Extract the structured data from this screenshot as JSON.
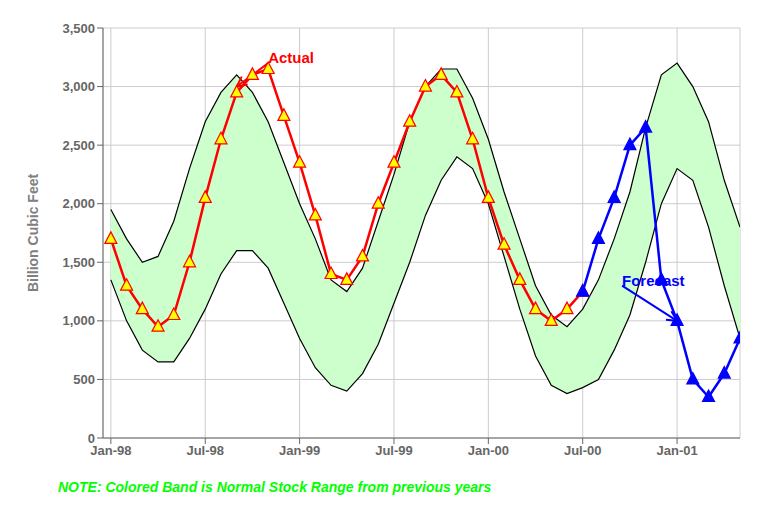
{
  "chart_data": {
    "type": "line",
    "ylabel": "Billion Cubic Feet",
    "grid": true,
    "xlim": [
      -0.5,
      40
    ],
    "xticks": [
      {
        "value": 0,
        "label": "Jan-98"
      },
      {
        "value": 6,
        "label": "Jul-98"
      },
      {
        "value": 12,
        "label": "Jan-99"
      },
      {
        "value": 18,
        "label": "Jul-99"
      },
      {
        "value": 24,
        "label": "Jan-00"
      },
      {
        "value": 30,
        "label": "Jul-00"
      },
      {
        "value": 36,
        "label": "Jan-01"
      }
    ],
    "ylim": [
      0,
      3500
    ],
    "yticks": [
      0,
      500,
      {
        "value": 1000,
        "label": "1,000"
      },
      {
        "value": 1500,
        "label": "1,500"
      },
      {
        "value": 2000,
        "label": "2,000"
      },
      {
        "value": 2500,
        "label": "2,500"
      },
      {
        "value": 3000,
        "label": "3,000"
      },
      {
        "value": 3500,
        "label": "3,500"
      }
    ],
    "series": [
      {
        "type": "band",
        "color": "#ccffcc",
        "x": [
          0,
          1,
          2,
          3,
          4,
          5,
          6,
          7,
          8,
          9,
          10,
          11,
          12,
          13,
          14,
          15,
          16,
          17,
          18,
          19,
          20,
          21,
          22,
          23,
          24,
          25,
          26,
          27,
          28,
          29,
          30,
          31,
          32,
          33,
          34,
          35,
          36,
          37,
          38,
          39,
          40
        ],
        "lower": [
          1350,
          1000,
          750,
          650,
          650,
          850,
          1100,
          1400,
          1600,
          1600,
          1450,
          1150,
          850,
          600,
          450,
          400,
          550,
          800,
          1150,
          1500,
          1900,
          2200,
          2400,
          2300,
          2000,
          1550,
          1100,
          700,
          450,
          380,
          430,
          500,
          750,
          1050,
          1500,
          2000,
          2300,
          2200,
          1800,
          1300,
          850
        ],
        "upper": [
          1950,
          1700,
          1500,
          1550,
          1850,
          2300,
          2700,
          2950,
          3100,
          2950,
          2700,
          2350,
          2000,
          1700,
          1350,
          1250,
          1450,
          1850,
          2250,
          2700,
          3000,
          3150,
          3150,
          2900,
          2550,
          2100,
          1700,
          1300,
          1050,
          950,
          1100,
          1350,
          1700,
          2100,
          2650,
          3100,
          3200,
          3000,
          2700,
          2200,
          1800
        ]
      },
      {
        "type": "line",
        "color": "#000000",
        "x": [
          0,
          1,
          2,
          3,
          4,
          5,
          6,
          7,
          8,
          9,
          10,
          11,
          12,
          13,
          14,
          15,
          16,
          17,
          18,
          19,
          20,
          21,
          22,
          23,
          24,
          25,
          26,
          27,
          28,
          29,
          30,
          31,
          32,
          33,
          34,
          35,
          36,
          37,
          38,
          39,
          40
        ],
        "values": [
          1950,
          1700,
          1500,
          1550,
          1850,
          2300,
          2700,
          2950,
          3100,
          2950,
          2700,
          2350,
          2000,
          1700,
          1350,
          1250,
          1450,
          1850,
          2250,
          2700,
          3000,
          3150,
          3150,
          2900,
          2550,
          2100,
          1700,
          1300,
          1050,
          950,
          1100,
          1350,
          1700,
          2100,
          2650,
          3100,
          3200,
          3000,
          2700,
          2200,
          1800
        ]
      },
      {
        "type": "line",
        "color": "#000000",
        "x": [
          0,
          1,
          2,
          3,
          4,
          5,
          6,
          7,
          8,
          9,
          10,
          11,
          12,
          13,
          14,
          15,
          16,
          17,
          18,
          19,
          20,
          21,
          22,
          23,
          24,
          25,
          26,
          27,
          28,
          29,
          30,
          31,
          32,
          33,
          34,
          35,
          36,
          37,
          38,
          39,
          40
        ],
        "values": [
          1350,
          1000,
          750,
          650,
          650,
          850,
          1100,
          1400,
          1600,
          1600,
          1450,
          1150,
          850,
          600,
          450,
          400,
          550,
          800,
          1150,
          1500,
          1900,
          2200,
          2400,
          2300,
          2000,
          1550,
          1100,
          700,
          450,
          380,
          430,
          500,
          750,
          1050,
          1500,
          2000,
          2300,
          2200,
          1800,
          1300,
          850
        ]
      },
      {
        "type": "line",
        "color": "#ff0000",
        "marker": "triangle",
        "x": [
          0,
          1,
          2,
          3,
          4,
          5,
          6,
          7,
          8,
          9,
          10,
          11,
          12,
          13,
          14,
          15,
          16,
          17,
          18,
          19,
          20,
          21,
          22,
          23,
          24,
          25,
          26,
          27,
          28,
          29,
          30
        ],
        "values": [
          1700,
          1300,
          1100,
          950,
          1050,
          1500,
          2050,
          2550,
          2950,
          3100,
          3150,
          2750,
          2350,
          1900,
          1400,
          1350,
          1550,
          2000,
          2350,
          2700,
          3000,
          3100,
          2950,
          2550,
          2050,
          1650,
          1350,
          1100,
          1000,
          1100,
          1250
        ],
        "colors": [
          "#ffff00",
          "#ffff00",
          "#ffff00",
          "#ffff00",
          "#ffff00",
          "#ffff00",
          "#ffff00",
          "#ffff00",
          "#ffff00",
          "#ffff00",
          "#ffff00",
          "#ffff00",
          "#ffff00",
          "#ffff00",
          "#ffff00",
          "#ffff00",
          "#ffff00",
          "#ffff00",
          "#ffff00",
          "#ffff00",
          "#ffff00",
          "#ffff00",
          "#ffff00",
          "#ffff00",
          "#ffff00",
          "#ffff00",
          "#ffff00",
          "#ffff00",
          "#ffff00",
          "#ffff00",
          "#ffff00"
        ]
      },
      {
        "type": "line",
        "color": "#0000ff",
        "marker": "triangle",
        "x": [
          30,
          31,
          32,
          33,
          34,
          35,
          36,
          37,
          38,
          39,
          40
        ],
        "values": [
          1250,
          1700,
          2050,
          2500,
          2650,
          1350,
          1000,
          500,
          350,
          550,
          850
        ],
        "colors": [
          "#0000ff",
          "#0000ff",
          "#0000ff",
          "#0000ff",
          "#0000ff",
          "#0000ff",
          "#0000ff",
          "#0000ff",
          "#0000ff",
          "#0000ff",
          "#0000ff"
        ]
      }
    ],
    "annotations": [
      {
        "text": "Actual",
        "x": 10,
        "y": 3200,
        "target": {
          "x": 8,
          "y": 3000
        },
        "color": "red"
      },
      {
        "text": "Forecast",
        "x": 32.5,
        "y": 1300,
        "target": {
          "x": 36,
          "y": 1000
        },
        "color": "blue"
      },
      {
        "text": "NOTE: Colored Band is Normal Stock Range from previous years",
        "color": "#00ff00"
      }
    ]
  }
}
